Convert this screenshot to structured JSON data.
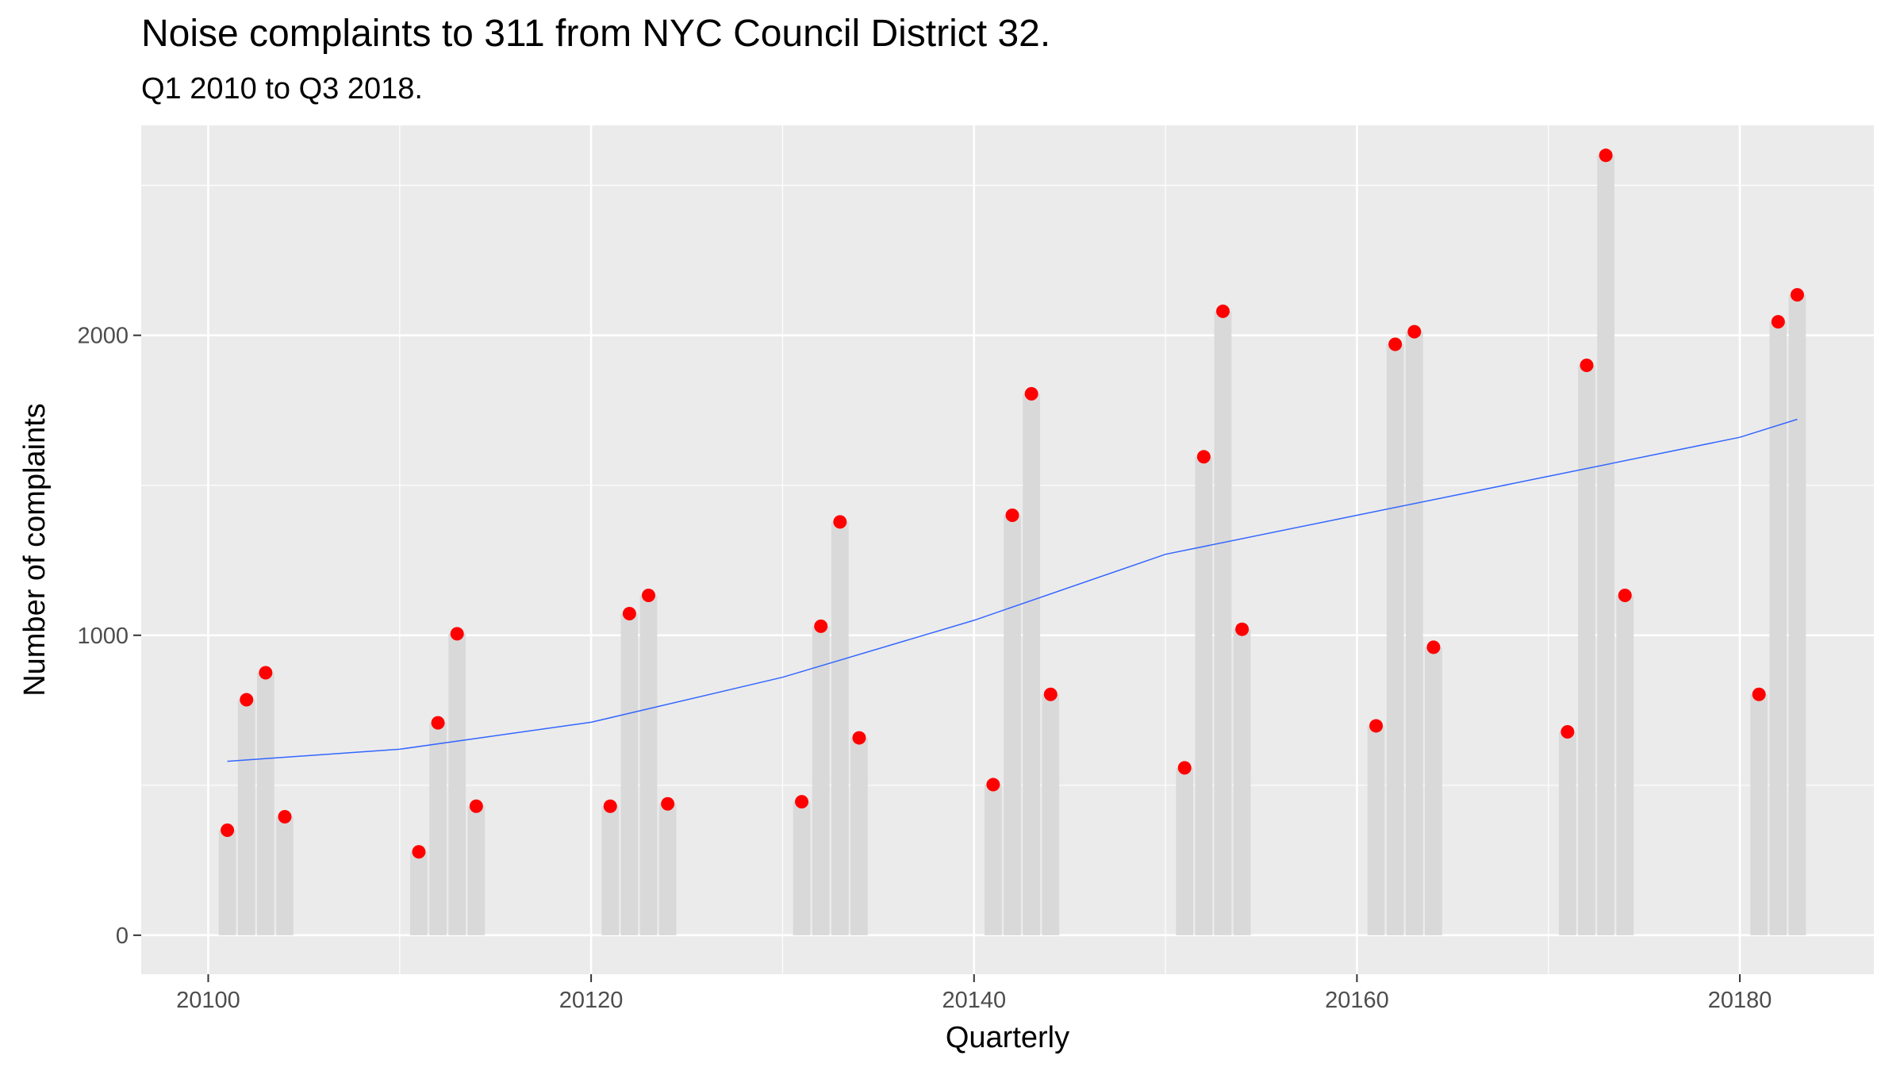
{
  "chart_data": {
    "type": "bar",
    "title": "Noise complaints to 311 from NYC Council District 32.",
    "subtitle": "Q1 2010 to Q3 2018.",
    "xlabel": "Quarterly",
    "ylabel": "Number of complaints",
    "xlim": [
      20096.5,
      20187
    ],
    "ylim": [
      -130,
      2700
    ],
    "x_ticks": [
      20100,
      20120,
      20140,
      20160,
      20180
    ],
    "y_ticks": [
      0,
      1000,
      2000
    ],
    "grid": true,
    "legend": "none",
    "x": [
      20101,
      20102,
      20103,
      20104,
      20111,
      20112,
      20113,
      20114,
      20121,
      20122,
      20123,
      20124,
      20131,
      20132,
      20133,
      20134,
      20141,
      20142,
      20143,
      20144,
      20151,
      20152,
      20153,
      20154,
      20161,
      20162,
      20163,
      20164,
      20171,
      20172,
      20173,
      20174,
      20181,
      20182,
      20183
    ],
    "values": [
      350,
      785,
      875,
      395,
      278,
      708,
      1005,
      430,
      430,
      1072,
      1133,
      438,
      445,
      1030,
      1378,
      658,
      502,
      1400,
      1805,
      803,
      558,
      1595,
      2080,
      1020,
      698,
      1970,
      2012,
      960,
      678,
      1900,
      2600,
      1133,
      803,
      2045,
      2135
    ],
    "trend": {
      "x": [
        20101,
        20110,
        20120,
        20130,
        20140,
        20150,
        20160,
        20170,
        20180,
        20183
      ],
      "y": [
        580,
        620,
        710,
        860,
        1050,
        1270,
        1400,
        1530,
        1660,
        1720
      ]
    },
    "colors": {
      "panel": "#ebebeb",
      "grid": "#ffffff",
      "bar": "#d9d9d9",
      "point": "#ff0000",
      "trend": "#3366ff"
    }
  }
}
